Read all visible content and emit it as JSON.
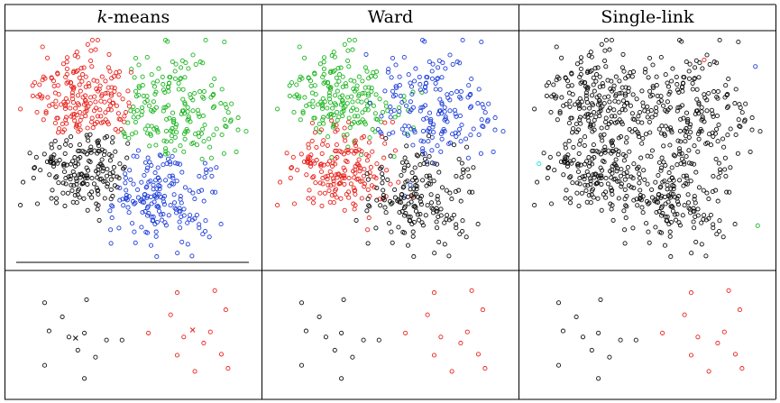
{
  "chart_data": {
    "type": "scatter",
    "columns": [
      {
        "id": "kmeans",
        "title_italic": "k",
        "title_rest": "-means"
      },
      {
        "id": "ward",
        "title_italic": "",
        "title_rest": "Ward"
      },
      {
        "id": "single",
        "title_italic": "",
        "title_rest": "Single-link"
      }
    ],
    "colors": {
      "red": "#e8231d",
      "green": "#1db521",
      "blue": "#1f3fd8",
      "black": "#111111",
      "cyan": "#1ee0e0"
    },
    "rows": [
      {
        "id": "top",
        "description_seed": 7,
        "clusters": [
          {
            "cx": 0.28,
            "cy": 0.27,
            "sx": 0.12,
            "sy": 0.1,
            "n": 200
          },
          {
            "cx": 0.7,
            "cy": 0.32,
            "sx": 0.13,
            "sy": 0.13,
            "n": 180
          },
          {
            "cx": 0.28,
            "cy": 0.6,
            "sx": 0.11,
            "sy": 0.1,
            "n": 190
          },
          {
            "cx": 0.62,
            "cy": 0.71,
            "sx": 0.12,
            "sy": 0.11,
            "n": 180
          }
        ],
        "kmeans_labels": [
          "red",
          "green",
          "black",
          "blue"
        ],
        "ward_labels": [
          "green",
          "blue",
          "red",
          "black"
        ],
        "single_labels": [
          "black",
          "black",
          "black",
          "black"
        ],
        "single_outliers": [
          {
            "x": 0.03,
            "y": 0.57,
            "color": "cyan"
          },
          {
            "x": 0.97,
            "y": 0.85,
            "color": "green"
          },
          {
            "x": 0.96,
            "y": 0.13,
            "color": "blue"
          },
          {
            "x": 0.74,
            "y": 0.1,
            "color": "red"
          }
        ]
      },
      {
        "id": "bottom",
        "groups": [
          {
            "points": [
              {
                "x": 0.1,
                "y": 0.23
              },
              {
                "x": 0.29,
                "y": 0.2
              },
              {
                "x": 0.18,
                "y": 0.37
              },
              {
                "x": 0.12,
                "y": 0.51
              },
              {
                "x": 0.21,
                "y": 0.57
              },
              {
                "x": 0.28,
                "y": 0.53
              },
              {
                "x": 0.38,
                "y": 0.6
              },
              {
                "x": 0.33,
                "y": 0.77
              },
              {
                "x": 0.45,
                "y": 0.6
              },
              {
                "x": 0.25,
                "y": 0.7
              },
              {
                "x": 0.1,
                "y": 0.85
              },
              {
                "x": 0.28,
                "y": 0.98
              }
            ]
          },
          {
            "points": [
              {
                "x": 0.7,
                "y": 0.13
              },
              {
                "x": 0.87,
                "y": 0.11
              },
              {
                "x": 0.92,
                "y": 0.3
              },
              {
                "x": 0.67,
                "y": 0.35
              },
              {
                "x": 0.57,
                "y": 0.53
              },
              {
                "x": 0.85,
                "y": 0.52
              },
              {
                "x": 0.73,
                "y": 0.57
              },
              {
                "x": 0.82,
                "y": 0.63
              },
              {
                "x": 0.9,
                "y": 0.74
              },
              {
                "x": 0.7,
                "y": 0.75
              },
              {
                "x": 0.78,
                "y": 0.91
              },
              {
                "x": 0.93,
                "y": 0.88
              }
            ]
          }
        ],
        "kmeans_colors": [
          "black",
          "red"
        ],
        "ward_colors": [
          "black",
          "red"
        ],
        "single_colors": [
          "black",
          "red"
        ],
        "centroids": [
          {
            "x": 0.24,
            "y": 0.58,
            "color": "black"
          },
          {
            "x": 0.77,
            "y": 0.5,
            "color": "red"
          }
        ]
      }
    ]
  }
}
